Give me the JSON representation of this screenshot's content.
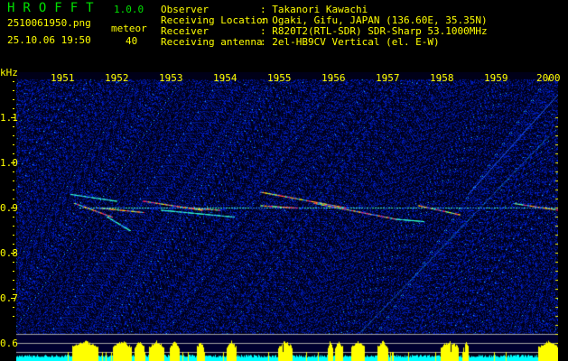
{
  "header": {
    "app_title": "HROFFT",
    "version": "1.0.0",
    "file_name": "2510061950.png",
    "datetime": "25.10.06 19:50",
    "meteor_label": "meteor",
    "meteor_count": "40",
    "info": [
      {
        "label": "Observer",
        "value": ": Takanori Kawachi"
      },
      {
        "label": "Receiving Location",
        "value": ": Ogaki, Gifu, JAPAN (136.60E, 35.35N)"
      },
      {
        "label": "Receiver",
        "value": ": R820T2(RTL-SDR) SDR-Sharp 53.1000MHz"
      },
      {
        "label": "Receiving antenna",
        "value": ": 2el-HB9CV Vertical (el. E-W)"
      }
    ]
  },
  "spectrogram": {
    "y_unit": "kHz",
    "y_ticks": [
      "1.1",
      "1.0",
      "0.9",
      "0.8",
      "0.7",
      "0.6"
    ],
    "x_ticks": [
      "1951",
      "1952",
      "1953",
      "1954",
      "1955",
      "1956",
      "1957",
      "1958",
      "1959",
      "2000"
    ],
    "colors": {
      "background": "#00005a",
      "noise": "#1030ff",
      "label": "#ffff00",
      "profile_low": "#00ffff",
      "profile_high": "#ffff00"
    }
  }
}
